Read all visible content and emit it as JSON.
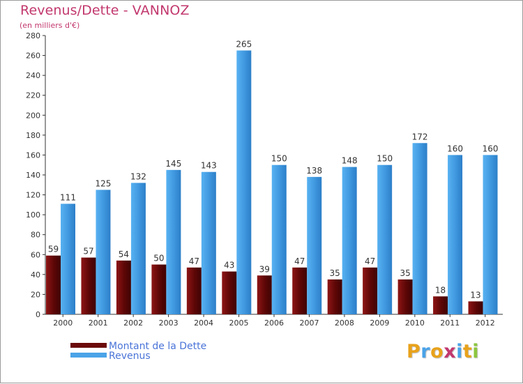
{
  "header": {
    "title": "Revenus/Dette - VANNOZ",
    "subtitle": "(en milliers d'€)"
  },
  "chart_data": {
    "type": "bar",
    "title": "Revenus/Dette - VANNOZ",
    "ylabel": "(en milliers d'€)",
    "xlabel": "",
    "categories": [
      "2000",
      "2001",
      "2002",
      "2003",
      "2004",
      "2005",
      "2006",
      "2007",
      "2008",
      "2009",
      "2010",
      "2011",
      "2012"
    ],
    "series": [
      {
        "name": "Montant de la Dette",
        "color": "#6b0a0a",
        "values": [
          59,
          57,
          54,
          50,
          47,
          43,
          39,
          47,
          35,
          47,
          35,
          18,
          13
        ]
      },
      {
        "name": "Revenus",
        "color": "#4aa3e8",
        "values": [
          111,
          125,
          132,
          145,
          143,
          265,
          150,
          138,
          148,
          150,
          172,
          160,
          160
        ]
      }
    ],
    "ylim": [
      0,
      280
    ],
    "yticks": [
      0,
      20,
      40,
      60,
      80,
      100,
      120,
      140,
      160,
      180,
      200,
      220,
      240,
      260,
      280
    ],
    "grid": false,
    "legend": "bottom-left"
  },
  "legend": {
    "items": [
      {
        "label": "Montant de la Dette",
        "color": "#6b0a0a"
      },
      {
        "label": "Revenus",
        "color": "#4aa3e8"
      }
    ]
  },
  "logo": {
    "letters": [
      "P",
      "r",
      "o",
      "x",
      "i",
      "t",
      "i"
    ],
    "colors": [
      "#e8a21b",
      "#4aa3e8",
      "#e8a21b",
      "#c2386e",
      "#4aa3e8",
      "#e8a21b",
      "#8cc63f"
    ]
  }
}
